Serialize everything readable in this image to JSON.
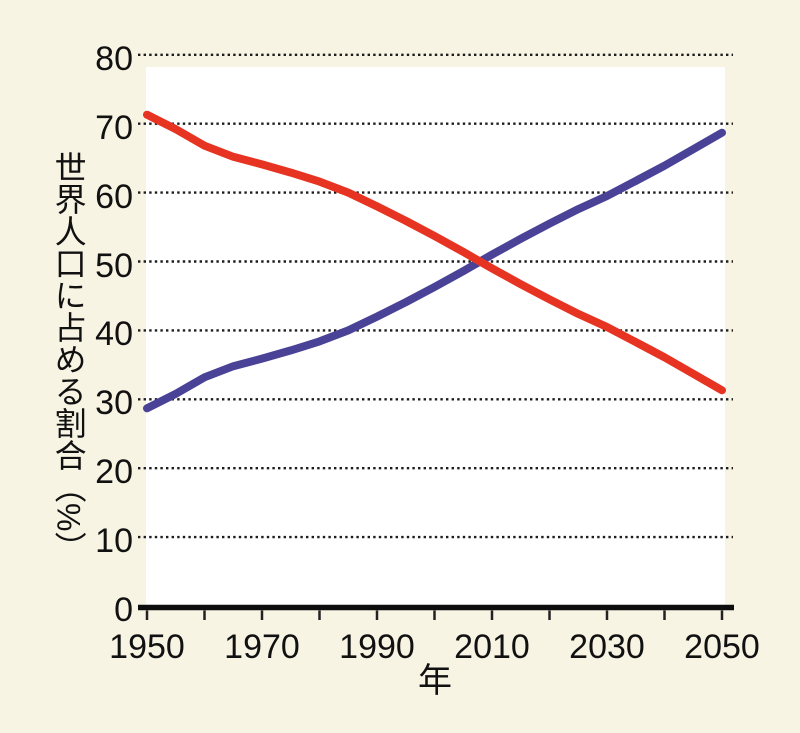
{
  "figure": {
    "background_color": "#f8f4e4",
    "plot_background_color": "#ffffff",
    "text_color": "#111111",
    "axis_color": "#0d0d0d",
    "gridline_color": "#1c1c1c"
  },
  "chart_data": {
    "type": "line",
    "title": "",
    "xlabel": "年",
    "ylabel": "世界人口に占める割合（%）",
    "xlim": [
      1950,
      2050
    ],
    "ylim": [
      0,
      80
    ],
    "grid": "horizontal-dotted",
    "legend": "none",
    "x": [
      1950,
      1955,
      1960,
      1965,
      1970,
      1975,
      1980,
      1985,
      1990,
      1995,
      2000,
      2005,
      2010,
      2015,
      2020,
      2025,
      2030,
      2035,
      2040,
      2045,
      2050
    ],
    "series": [
      {
        "name": "blue-rising-line",
        "color": "#4a4296",
        "values": [
          28.7,
          30.8,
          33.2,
          34.8,
          35.9,
          37.1,
          38.4,
          40.0,
          42.0,
          44.1,
          46.3,
          48.6,
          51.0,
          53.3,
          55.5,
          57.6,
          59.5,
          61.7,
          63.9,
          66.3,
          68.7
        ]
      },
      {
        "name": "red-falling-line",
        "color": "#e73322",
        "values": [
          71.3,
          69.2,
          66.8,
          65.2,
          64.1,
          62.9,
          61.6,
          60.0,
          58.0,
          55.9,
          53.7,
          51.4,
          49.0,
          46.7,
          44.5,
          42.4,
          40.5,
          38.3,
          36.1,
          33.7,
          31.3
        ]
      }
    ],
    "y_ticks": [
      0,
      10,
      20,
      30,
      40,
      50,
      60,
      70,
      80
    ],
    "x_ticks_labeled": [
      1950,
      1970,
      1990,
      2010,
      2030,
      2050
    ],
    "x_ticks_minor": [
      1960,
      1980,
      2000,
      2020,
      2040
    ]
  }
}
